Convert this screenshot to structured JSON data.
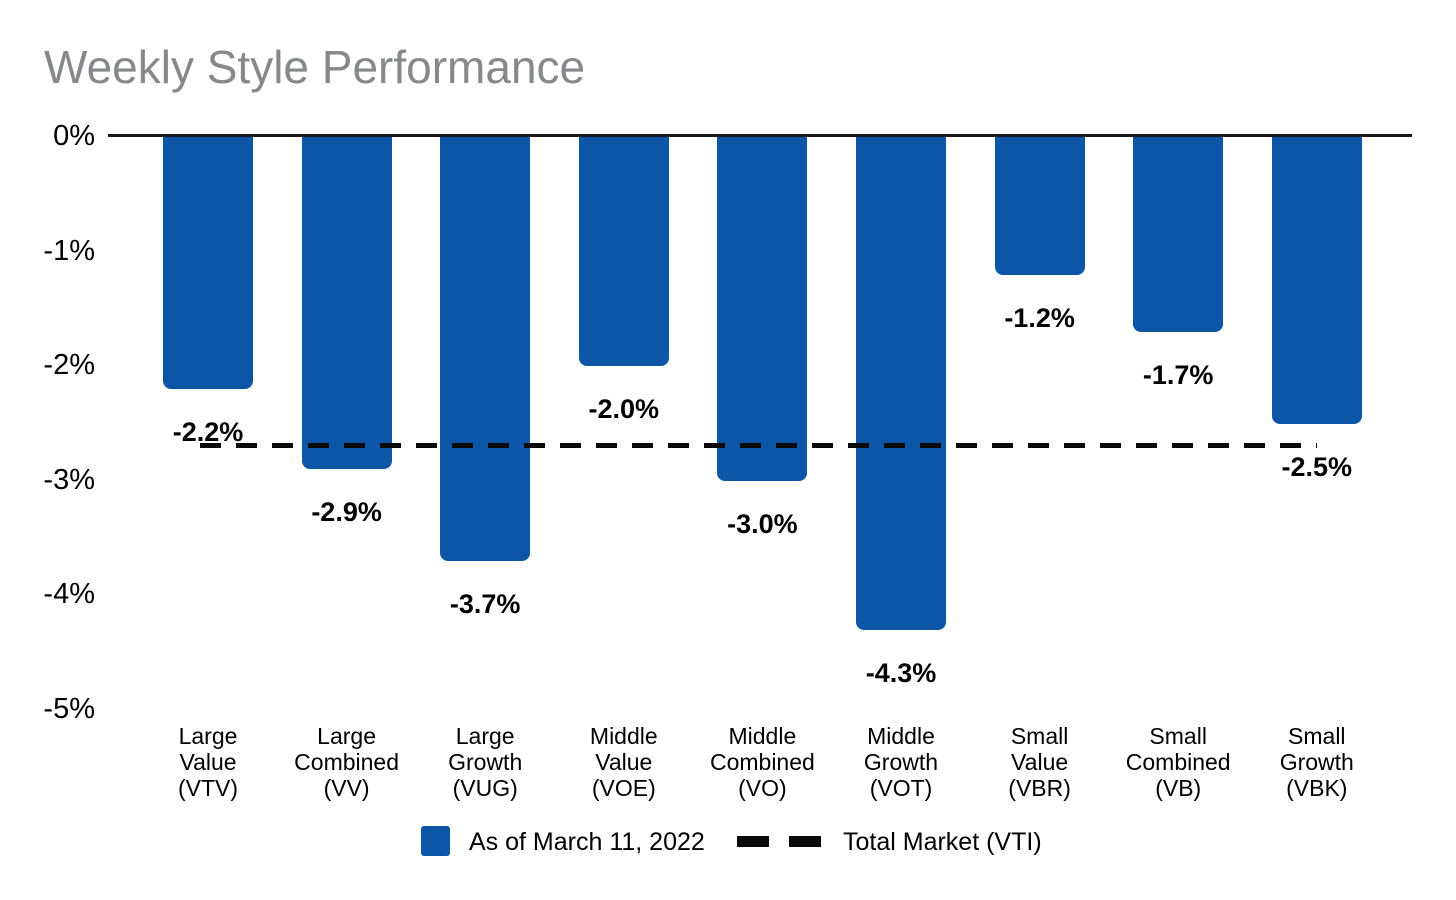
{
  "chart_data": {
    "type": "bar",
    "title": "Weekly Style Performance",
    "categories": [
      {
        "lines": [
          "Large",
          "Value",
          "(VTV)"
        ],
        "ticker": "VTV"
      },
      {
        "lines": [
          "Large",
          "Combined",
          "(VV)"
        ],
        "ticker": "VV"
      },
      {
        "lines": [
          "Large",
          "Growth",
          "(VUG)"
        ],
        "ticker": "VUG"
      },
      {
        "lines": [
          "Middle",
          "Value",
          "(VOE)"
        ],
        "ticker": "VOE"
      },
      {
        "lines": [
          "Middle",
          "Combined",
          "(VO)"
        ],
        "ticker": "VO"
      },
      {
        "lines": [
          "Middle",
          "Growth",
          "(VOT)"
        ],
        "ticker": "VOT"
      },
      {
        "lines": [
          "Small",
          "Value",
          "(VBR)"
        ],
        "ticker": "VBR"
      },
      {
        "lines": [
          "Small",
          "Combined",
          "(VB)"
        ],
        "ticker": "VB"
      },
      {
        "lines": [
          "Small",
          "Growth",
          "(VBK)"
        ],
        "ticker": "VBK"
      }
    ],
    "values": [
      -2.2,
      -2.9,
      -3.7,
      -2.0,
      -3.0,
      -4.3,
      -1.2,
      -1.7,
      -2.5
    ],
    "value_labels": [
      "-2.2%",
      "-2.9%",
      "-3.7%",
      "-2.0%",
      "-3.0%",
      "-4.3%",
      "-1.2%",
      "-1.7%",
      "-2.5%"
    ],
    "y_ticks": [
      {
        "label": "0%",
        "value": 0
      },
      {
        "label": "-1%",
        "value": -1
      },
      {
        "label": "-2%",
        "value": -2
      },
      {
        "label": "-3%",
        "value": -3
      },
      {
        "label": "-4%",
        "value": -4
      },
      {
        "label": "-5%",
        "value": -5
      }
    ],
    "ylim": [
      0,
      -5
    ],
    "grid": false,
    "reference_line": {
      "label": "Total Market (VTI)",
      "value": -2.7,
      "style": "dashed"
    },
    "legend": {
      "position": "bottom",
      "bar_label": "As of March 11, 2022",
      "line_label": "Total Market (VTI)"
    },
    "colors": {
      "bar": "#0d55a6",
      "reference_line": "#0a0a0a",
      "axis_line": "#1a1a1a",
      "title": "#87888b",
      "text": "#000000",
      "background": "#ffffff"
    }
  }
}
